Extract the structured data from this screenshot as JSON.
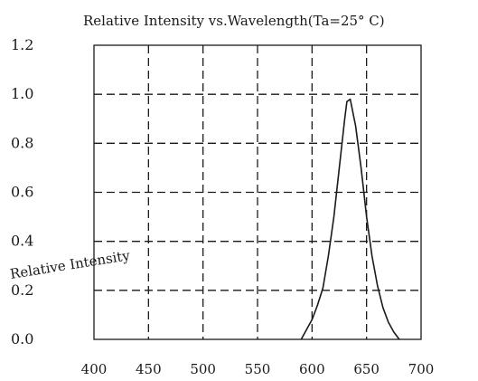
{
  "chart_data": {
    "type": "line",
    "title": "Relative Intensity vs.Wavelength(Ta=25° C)",
    "xlabel": "",
    "ylabel": "Relative Intensity",
    "x_ticks": [
      "400",
      "450",
      "500",
      "550",
      "600",
      "650",
      "700"
    ],
    "y_ticks": [
      "0.0",
      "0.2",
      "0.4",
      "0.6",
      "0.8",
      "1.0",
      "1.2"
    ],
    "xlim": [
      400,
      700
    ],
    "ylim": [
      0,
      1.2
    ],
    "grid": true,
    "series": [
      {
        "x": [
          590,
          600,
          605,
          610,
          615,
          620,
          625,
          630,
          632,
          635,
          640,
          645,
          650,
          655,
          660,
          665,
          670,
          675,
          680
        ],
        "values": [
          0.0,
          0.08,
          0.14,
          0.21,
          0.34,
          0.5,
          0.7,
          0.9,
          0.97,
          0.98,
          0.87,
          0.7,
          0.5,
          0.34,
          0.22,
          0.13,
          0.07,
          0.03,
          0.0
        ]
      }
    ]
  }
}
